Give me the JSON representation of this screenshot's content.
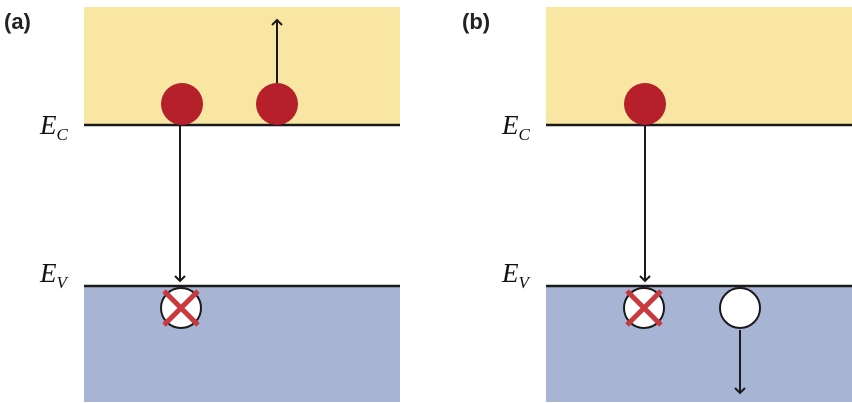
{
  "panels": [
    {
      "label": "(a)",
      "conduction_label": {
        "main": "E",
        "sub": "C"
      },
      "valence_label": {
        "main": "E",
        "sub": "V"
      }
    },
    {
      "label": "(b)",
      "conduction_label": {
        "main": "E",
        "sub": "C"
      },
      "valence_label": {
        "main": "E",
        "sub": "V"
      }
    }
  ],
  "colors": {
    "conduction_band": "#f8e6a2",
    "valence_band": "#a7b4d4",
    "electron": "#b5202a",
    "hole": "#ffffff",
    "cross": "#c93a3f",
    "line": "#1a1a1a"
  }
}
